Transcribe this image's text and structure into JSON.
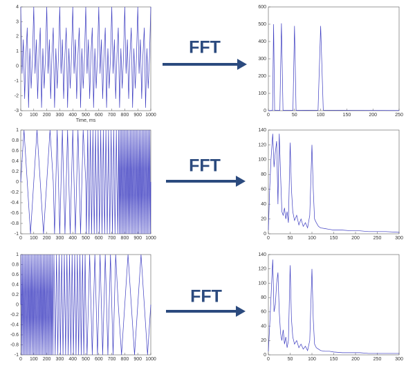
{
  "arrows": [
    "FFT",
    "FFT",
    "FFT"
  ],
  "chart_data": [
    {
      "type": "line",
      "xlabel": "Time, ms",
      "color": "#3a3ac0",
      "xlim": [
        0,
        1000
      ],
      "ylim": [
        -3,
        4
      ],
      "xticks": [
        0,
        100,
        200,
        300,
        400,
        500,
        600,
        700,
        800,
        900,
        1000
      ],
      "yticks": [
        -3,
        -2,
        -1,
        0,
        1,
        2,
        3,
        4
      ],
      "x": [
        0,
        10,
        20,
        30,
        40,
        50,
        60,
        70,
        80,
        90,
        100,
        110,
        120,
        130,
        140,
        150,
        160,
        170,
        180,
        190,
        200,
        210,
        220,
        230,
        240,
        250,
        260,
        270,
        280,
        290,
        300,
        310,
        320,
        330,
        340,
        350,
        360,
        370,
        380,
        390,
        400,
        410,
        420,
        430,
        440,
        450,
        460,
        470,
        480,
        490,
        500,
        510,
        520,
        530,
        540,
        550,
        560,
        570,
        580,
        590,
        600,
        610,
        620,
        630,
        640,
        650,
        660,
        670,
        680,
        690,
        700,
        710,
        720,
        730,
        740,
        750,
        760,
        770,
        780,
        790,
        800,
        810,
        820,
        830,
        840,
        850,
        860,
        870,
        880,
        890,
        900,
        910,
        920,
        930,
        940,
        950,
        960,
        970,
        980,
        990,
        1000
      ],
      "values": [
        4,
        -0.5,
        1.8,
        -2.2,
        0.8,
        2.6,
        -2.8,
        1.2,
        -1.5,
        0.6,
        4,
        -0.5,
        1.8,
        -2.2,
        0.8,
        2.6,
        -2.8,
        1.2,
        -1.5,
        0.6,
        4,
        -0.5,
        1.8,
        -2.2,
        0.8,
        2.6,
        -2.8,
        1.2,
        -1.5,
        0.6,
        4,
        -0.5,
        1.8,
        -2.2,
        0.8,
        2.6,
        -2.8,
        1.2,
        -1.5,
        0.6,
        4,
        -0.5,
        1.8,
        -2.2,
        0.8,
        2.6,
        -2.8,
        1.2,
        -1.5,
        0.6,
        4,
        -0.5,
        1.8,
        -2.2,
        0.8,
        2.6,
        -2.8,
        1.2,
        -1.5,
        0.6,
        4,
        -0.5,
        1.8,
        -2.2,
        0.8,
        2.6,
        -2.8,
        1.2,
        -1.5,
        0.6,
        4,
        -0.5,
        1.8,
        -2.2,
        0.8,
        2.6,
        -2.8,
        1.2,
        -1.5,
        0.6,
        4,
        -0.5,
        1.8,
        -2.2,
        0.8,
        2.6,
        -2.8,
        1.2,
        -1.5,
        0.6,
        4,
        -0.5,
        1.8,
        -2.2,
        0.8,
        2.6,
        -2.8,
        1.2,
        -1.5,
        0.6,
        4
      ]
    },
    {
      "type": "line",
      "color": "#3a3ac0",
      "xlim": [
        0,
        250
      ],
      "ylim": [
        0,
        600
      ],
      "xticks": [
        0,
        50,
        100,
        150,
        200,
        250
      ],
      "yticks": [
        0,
        100,
        200,
        300,
        400,
        500,
        600
      ],
      "x": [
        0,
        8,
        10,
        12,
        22,
        25,
        28,
        47,
        50,
        53,
        95,
        100,
        105,
        250
      ],
      "values": [
        0,
        2,
        500,
        2,
        2,
        505,
        2,
        2,
        490,
        2,
        3,
        490,
        3,
        1
      ]
    },
    {
      "type": "line",
      "color": "#3a3ac0",
      "xlim": [
        0,
        1000
      ],
      "ylim": [
        -1,
        1
      ],
      "xticks": [
        0,
        100,
        200,
        300,
        400,
        500,
        600,
        700,
        800,
        900,
        1000
      ],
      "yticks": [
        -1,
        -0.8,
        -0.6,
        -0.4,
        -0.2,
        0,
        0.2,
        0.4,
        0.6,
        0.8,
        1
      ],
      "x": [
        0,
        25,
        75,
        125,
        175,
        225,
        250,
        260,
        280,
        300,
        320,
        340,
        360,
        380,
        400,
        420,
        440,
        460,
        480,
        500,
        505,
        515,
        525,
        535,
        545,
        555,
        565,
        575,
        585,
        595,
        605,
        615,
        625,
        635,
        645,
        655,
        665,
        675,
        685,
        695,
        705,
        715,
        725,
        735,
        745,
        750,
        752.5,
        757.5,
        762.5,
        767.5,
        772.5,
        777.5,
        782.5,
        787.5,
        792.5,
        797.5,
        802.5,
        807.5,
        812.5,
        817.5,
        822.5,
        827.5,
        832.5,
        837.5,
        842.5,
        847.5,
        852.5,
        857.5,
        862.5,
        867.5,
        872.5,
        877.5,
        882.5,
        887.5,
        892.5,
        897.5,
        902.5,
        907.5,
        912.5,
        917.5,
        922.5,
        927.5,
        932.5,
        937.5,
        942.5,
        947.5,
        952.5,
        957.5,
        962.5,
        967.5,
        972.5,
        977.5,
        982.5,
        987.5,
        992.5,
        997.5,
        1000
      ],
      "values": [
        0,
        1,
        -1,
        1,
        -1,
        1,
        0,
        -1,
        1,
        -1,
        1,
        -1,
        1,
        -1,
        1,
        -1,
        1,
        -1,
        1,
        0,
        -1,
        1,
        -1,
        1,
        -1,
        1,
        -1,
        1,
        -1,
        1,
        -1,
        1,
        -1,
        1,
        -1,
        1,
        -1,
        1,
        -1,
        1,
        -1,
        1,
        -1,
        1,
        -1,
        0,
        1,
        -1,
        1,
        -1,
        1,
        -1,
        1,
        -1,
        1,
        -1,
        1,
        -1,
        1,
        -1,
        1,
        -1,
        1,
        -1,
        1,
        -1,
        1,
        -1,
        1,
        -1,
        1,
        -1,
        1,
        -1,
        1,
        -1,
        1,
        -1,
        1,
        -1,
        1,
        -1,
        1,
        -1,
        1,
        -1,
        1,
        -1,
        1,
        -1,
        1,
        -1,
        1,
        -1,
        1,
        -1,
        0
      ]
    },
    {
      "type": "line",
      "color": "#3a3ac0",
      "xlim": [
        0,
        300
      ],
      "ylim": [
        0,
        140
      ],
      "xticks": [
        0,
        50,
        100,
        150,
        200,
        250,
        300
      ],
      "yticks": [
        0,
        20,
        40,
        60,
        80,
        100,
        120,
        140
      ],
      "x": [
        0,
        3,
        6,
        10,
        13,
        16,
        19,
        22,
        25,
        28,
        31,
        34,
        37,
        40,
        43,
        46,
        50,
        53,
        56,
        60,
        65,
        70,
        75,
        80,
        85,
        90,
        95,
        100,
        103,
        106,
        110,
        115,
        120,
        130,
        140,
        150,
        170,
        190,
        210,
        230,
        250,
        270,
        300
      ],
      "values": [
        5,
        60,
        100,
        135,
        90,
        110,
        125,
        40,
        135,
        80,
        30,
        25,
        35,
        20,
        30,
        15,
        123,
        60,
        30,
        18,
        25,
        12,
        20,
        10,
        15,
        8,
        25,
        120,
        60,
        20,
        15,
        10,
        8,
        7,
        6,
        5,
        5,
        4,
        4,
        3,
        3,
        3,
        2
      ]
    },
    {
      "type": "line",
      "color": "#3a3ac0",
      "xlim": [
        0,
        1000
      ],
      "ylim": [
        -1,
        1
      ],
      "xticks": [
        0,
        100,
        200,
        300,
        400,
        500,
        600,
        700,
        800,
        900,
        1000
      ],
      "yticks": [
        -1,
        -0.8,
        -0.6,
        -0.4,
        -0.2,
        0,
        0.2,
        0.4,
        0.6,
        0.8,
        1
      ],
      "x": [
        0,
        2.5,
        7.5,
        12.5,
        17.5,
        22.5,
        27.5,
        32.5,
        37.5,
        42.5,
        47.5,
        52.5,
        57.5,
        62.5,
        67.5,
        72.5,
        77.5,
        82.5,
        87.5,
        92.5,
        97.5,
        102.5,
        107.5,
        112.5,
        117.5,
        122.5,
        127.5,
        132.5,
        137.5,
        142.5,
        147.5,
        152.5,
        157.5,
        162.5,
        167.5,
        172.5,
        177.5,
        182.5,
        187.5,
        192.5,
        197.5,
        202.5,
        207.5,
        212.5,
        217.5,
        222.5,
        227.5,
        232.5,
        237.5,
        242.5,
        247.5,
        250,
        255,
        265,
        275,
        285,
        295,
        305,
        315,
        325,
        335,
        345,
        355,
        365,
        375,
        385,
        395,
        405,
        415,
        425,
        435,
        445,
        455,
        465,
        475,
        485,
        495,
        500,
        510,
        530,
        550,
        570,
        590,
        610,
        630,
        650,
        670,
        690,
        710,
        730,
        750,
        775,
        825,
        875,
        925,
        975,
        1000
      ],
      "values": [
        0,
        1,
        -1,
        1,
        -1,
        1,
        -1,
        1,
        -1,
        1,
        -1,
        1,
        -1,
        1,
        -1,
        1,
        -1,
        1,
        -1,
        1,
        -1,
        1,
        -1,
        1,
        -1,
        1,
        -1,
        1,
        -1,
        1,
        -1,
        1,
        -1,
        1,
        -1,
        1,
        -1,
        1,
        -1,
        1,
        -1,
        1,
        -1,
        1,
        -1,
        1,
        -1,
        1,
        -1,
        1,
        -1,
        0,
        1,
        -1,
        1,
        -1,
        1,
        -1,
        1,
        -1,
        1,
        -1,
        1,
        -1,
        1,
        -1,
        1,
        -1,
        1,
        -1,
        1,
        -1,
        1,
        -1,
        1,
        -1,
        1,
        0,
        -1,
        1,
        -1,
        1,
        -1,
        1,
        -1,
        1,
        -1,
        1,
        -1,
        1,
        0,
        -1,
        1,
        -1,
        1,
        -1,
        0
      ]
    },
    {
      "type": "line",
      "color": "#3a3ac0",
      "xlim": [
        0,
        300
      ],
      "ylim": [
        0,
        140
      ],
      "xticks": [
        0,
        50,
        100,
        150,
        200,
        250,
        300
      ],
      "yticks": [
        0,
        20,
        40,
        60,
        80,
        100,
        120,
        140
      ],
      "x": [
        0,
        3,
        6,
        10,
        13,
        16,
        19,
        22,
        25,
        28,
        31,
        34,
        37,
        40,
        43,
        46,
        50,
        53,
        56,
        60,
        65,
        70,
        75,
        80,
        85,
        90,
        95,
        100,
        103,
        106,
        110,
        115,
        120,
        130,
        140,
        150,
        170,
        190,
        210,
        230,
        250,
        270,
        300
      ],
      "values": [
        5,
        40,
        80,
        133,
        60,
        70,
        100,
        115,
        60,
        30,
        20,
        35,
        15,
        25,
        10,
        20,
        125,
        50,
        25,
        15,
        20,
        10,
        15,
        8,
        12,
        6,
        20,
        120,
        50,
        15,
        10,
        8,
        6,
        5,
        5,
        4,
        3,
        3,
        3,
        2,
        2,
        2,
        2
      ]
    }
  ]
}
